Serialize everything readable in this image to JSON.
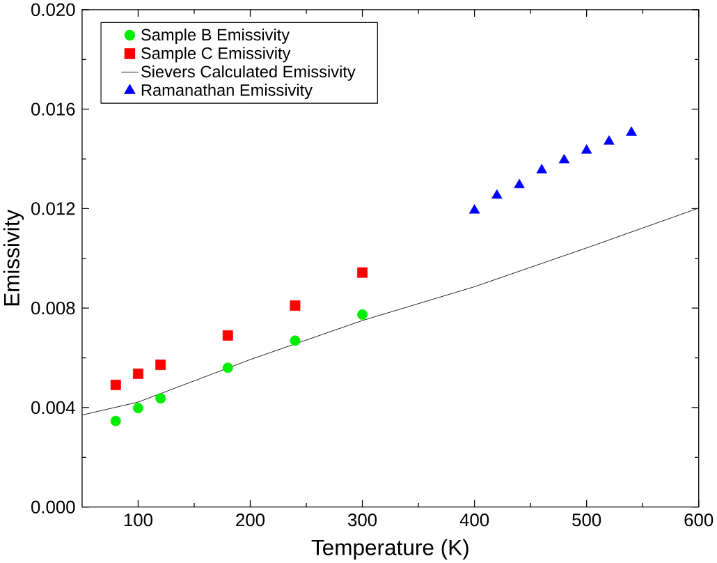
{
  "chart_data": {
    "type": "scatter",
    "xlabel": "Temperature (K)",
    "ylabel": "Emissivity",
    "xlim": [
      50,
      600
    ],
    "xticks": [
      100,
      200,
      300,
      400,
      500,
      600
    ],
    "ylim": [
      0,
      0.02
    ],
    "yticks": [
      {
        "value": 0,
        "label": "0.000"
      },
      {
        "value": 0.004,
        "label": "0.004"
      },
      {
        "value": 0.008,
        "label": "0.008"
      },
      {
        "value": 0.012,
        "label": "0.012"
      },
      {
        "value": 0.016,
        "label": "0.016"
      },
      {
        "value": 0.02,
        "label": "0.020"
      }
    ],
    "grid": false,
    "legend": "top left",
    "series": [
      {
        "name": "Sample B Emissivity",
        "marker": "circle",
        "color": "#00ee00",
        "x": [
          80,
          100,
          120,
          180,
          240,
          300
        ],
        "values": [
          0.00346,
          0.00398,
          0.00437,
          0.0056,
          0.00669,
          0.00774
        ]
      },
      {
        "name": "Sample C Emissivity",
        "marker": "square",
        "color": "#ff0000",
        "x": [
          80,
          100,
          120,
          180,
          240,
          300
        ],
        "values": [
          0.00491,
          0.00536,
          0.00572,
          0.0069,
          0.0081,
          0.00943
        ]
      },
      {
        "name": "Sievers Calculated Emissivity",
        "type": "line",
        "marker": "none",
        "line_style": "solid",
        "color": "#000000",
        "x": [
          50,
          100,
          200,
          300,
          400,
          500,
          600
        ],
        "values": [
          0.0037,
          0.00422,
          0.00593,
          0.0075,
          0.00886,
          0.01042,
          0.01202
        ]
      },
      {
        "name": "Ramanathan Emissivity",
        "marker": "triangle",
        "color": "#0000ff",
        "x": [
          400,
          420,
          440,
          460,
          480,
          500,
          520,
          540
        ],
        "values": [
          0.01193,
          0.01253,
          0.01295,
          0.01355,
          0.01395,
          0.01434,
          0.0147,
          0.01506
        ]
      }
    ]
  }
}
